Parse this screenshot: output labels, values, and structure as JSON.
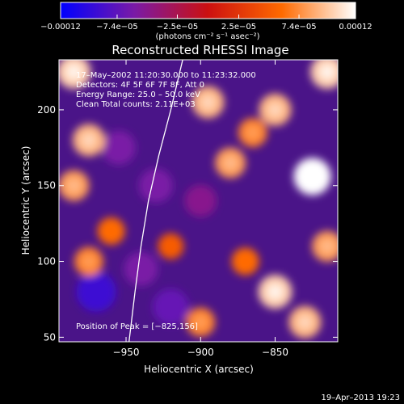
{
  "chart_data": {
    "type": "heatmap",
    "title": "Reconstructed RHESSI Image",
    "xlabel": "Heliocentric X (arcsec)",
    "ylabel": "Heliocentric Y (arcsec)",
    "xlim": [
      -995,
      -808
    ],
    "ylim": [
      47,
      233
    ],
    "x_ticks": [
      -950,
      -900,
      -850
    ],
    "x_tick_labels": [
      "−950",
      "−900",
      "−850"
    ],
    "y_ticks": [
      50,
      100,
      150,
      200
    ],
    "y_tick_labels": [
      "50",
      "100",
      "150",
      "200"
    ],
    "colorbar": {
      "min": -0.00012,
      "max": 0.00012,
      "ticks": [
        -0.00012,
        -7.4e-05,
        -2.5e-05,
        2.5e-05,
        7.4e-05,
        0.00012
      ],
      "tick_labels": [
        "−0.00012",
        "−7.4e−05",
        "−2.5e−05",
        "2.5e−05",
        "7.4e−05",
        "0.00012"
      ],
      "units_label": "(photons cm⁻² s⁻¹ asec⁻²)",
      "colors": [
        "#0000ff",
        "#7a1aa6",
        "#cc1010",
        "#ff6a00",
        "#ffffff"
      ]
    },
    "annotations": [
      "17–May–2002 11:20:30.000 to 11:23:32.000",
      "Detectors: 4F 5F 6F 7F 8F, Att 0",
      "Energy Range: 25.0 – 50.0 keV",
      "Clean    Total counts: 2.11E+03"
    ],
    "peak_label": "Position of Peak = [−825,156]",
    "peak_position": [
      -825,
      156
    ],
    "hot_spots": [
      {
        "x": -985,
        "y": 225,
        "value": 0.0001
      },
      {
        "x": -975,
        "y": 180,
        "value": 9e-05
      },
      {
        "x": -985,
        "y": 150,
        "value": 8e-05
      },
      {
        "x": -960,
        "y": 120,
        "value": 6e-05
      },
      {
        "x": -975,
        "y": 100,
        "value": 7e-05
      },
      {
        "x": -895,
        "y": 205,
        "value": 9e-05
      },
      {
        "x": -880,
        "y": 165,
        "value": 8e-05
      },
      {
        "x": -865,
        "y": 185,
        "value": 7e-05
      },
      {
        "x": -870,
        "y": 100,
        "value": 6e-05
      },
      {
        "x": -850,
        "y": 80,
        "value": 0.0001
      },
      {
        "x": -850,
        "y": 200,
        "value": 9e-05
      },
      {
        "x": -825,
        "y": 156,
        "value": 0.00012
      },
      {
        "x": -815,
        "y": 225,
        "value": 0.0001
      },
      {
        "x": -815,
        "y": 110,
        "value": 8e-05
      },
      {
        "x": -830,
        "y": 60,
        "value": 9e-05
      },
      {
        "x": -900,
        "y": 60,
        "value": 7e-05
      },
      {
        "x": -920,
        "y": 110,
        "value": 5e-05
      }
    ],
    "cold_spots": [
      {
        "x": -970,
        "y": 80,
        "value": -9e-05
      },
      {
        "x": -955,
        "y": 175,
        "value": -6e-05
      },
      {
        "x": -930,
        "y": 150,
        "value": -6e-05
      },
      {
        "x": -920,
        "y": 70,
        "value": -7e-05
      },
      {
        "x": -900,
        "y": 140,
        "value": -5e-05
      },
      {
        "x": -940,
        "y": 95,
        "value": -6e-05
      }
    ],
    "limb_curve": [
      [
        -948,
        47
      ],
      [
        -944,
        80
      ],
      [
        -940,
        110
      ],
      [
        -935,
        140
      ],
      [
        -928,
        170
      ],
      [
        -920,
        200
      ],
      [
        -912,
        233
      ]
    ]
  },
  "footer": {
    "date": "19–Apr–2013 19:23"
  }
}
